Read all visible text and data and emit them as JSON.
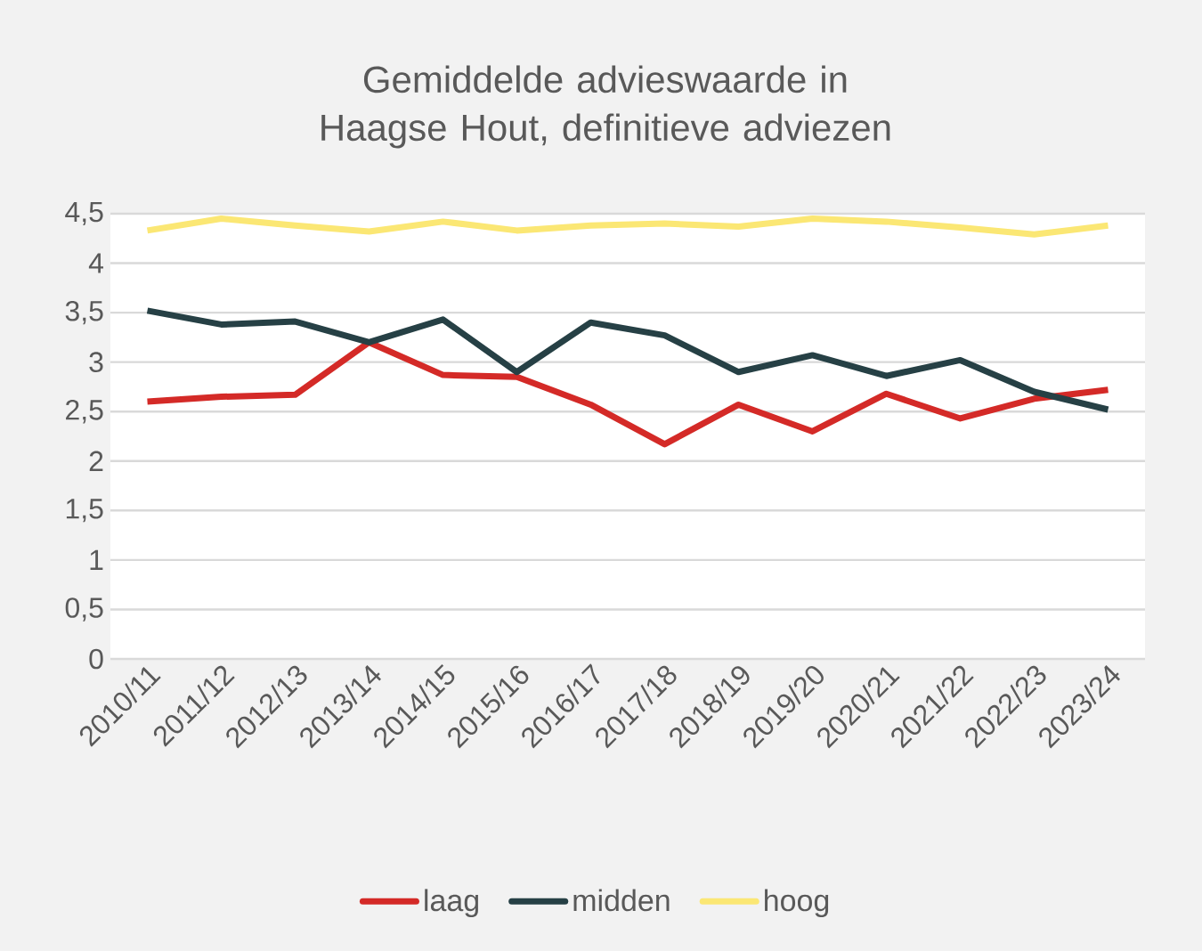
{
  "chart_data": {
    "type": "line",
    "title": "Gemiddelde advieswaarde in Haagse Hout, definitieve adviezen",
    "categories": [
      "2010/11",
      "2011/12",
      "2012/13",
      "2013/14",
      "2014/15",
      "2015/16",
      "2016/17",
      "2017/18",
      "2018/19",
      "2019/20",
      "2020/21",
      "2021/22",
      "2022/23",
      "2023/24"
    ],
    "series": [
      {
        "name": "laag",
        "color": "#d42a27",
        "values": [
          2.6,
          2.65,
          2.67,
          3.2,
          2.87,
          2.85,
          2.57,
          2.17,
          2.57,
          2.3,
          2.68,
          2.43,
          2.63,
          2.72
        ]
      },
      {
        "name": "midden",
        "color": "#264045",
        "values": [
          3.52,
          3.38,
          3.41,
          3.2,
          3.43,
          2.9,
          3.4,
          3.27,
          2.9,
          3.07,
          2.86,
          3.02,
          2.7,
          2.52
        ]
      },
      {
        "name": "hoog",
        "color": "#fbe774",
        "values": [
          4.33,
          4.45,
          4.38,
          4.32,
          4.42,
          4.33,
          4.38,
          4.4,
          4.37,
          4.45,
          4.42,
          4.36,
          4.29,
          4.38
        ]
      }
    ],
    "ylim": [
      0,
      4.5
    ],
    "yticks": [
      0,
      {
        "value": 0.5,
        "label": "0,5"
      },
      1,
      {
        "value": 1.5,
        "label": "1,5"
      },
      2,
      {
        "value": 2.5,
        "label": "2,5"
      },
      3,
      {
        "value": 3.5,
        "label": "3,5"
      },
      4,
      {
        "value": 4.5,
        "label": "4,5"
      }
    ],
    "grid": "y",
    "legend": "bottom"
  }
}
